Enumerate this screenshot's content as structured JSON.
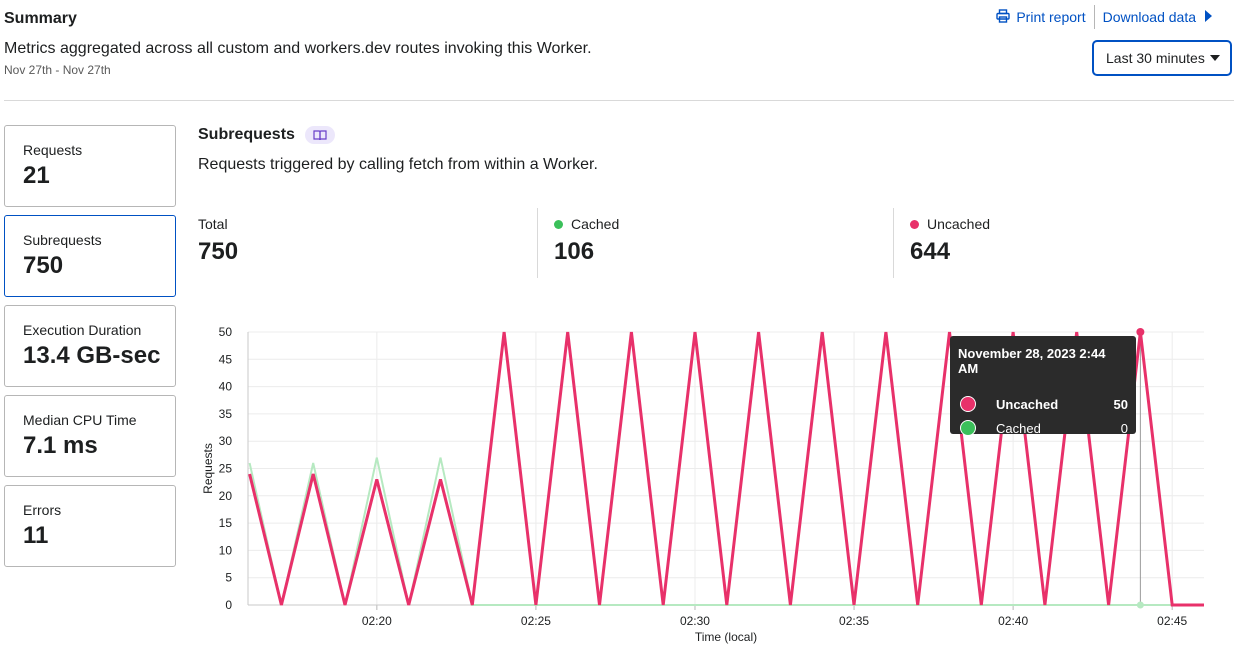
{
  "summary": {
    "title": "Summary",
    "description": "Metrics aggregated across all custom and workers.dev routes invoking this Worker.",
    "dates": "Nov 27th - Nov 27th"
  },
  "actions": {
    "print_label": "Print report",
    "download_label": "Download data"
  },
  "time_range": {
    "selected": "Last 30 minutes"
  },
  "metrics": [
    {
      "label": "Requests",
      "value": "21"
    },
    {
      "label": "Subrequests",
      "value": "750"
    },
    {
      "label": "Execution Duration",
      "value": "13.4 GB-sec"
    },
    {
      "label": "Median CPU Time",
      "value": "7.1 ms"
    },
    {
      "label": "Errors",
      "value": "11"
    }
  ],
  "panel": {
    "title": "Subrequests",
    "description": "Requests triggered by calling fetch from within a Worker."
  },
  "stats": {
    "total_label": "Total",
    "total_value": "750",
    "cached_label": "Cached",
    "cached_value": "106",
    "uncached_label": "Uncached",
    "uncached_value": "644"
  },
  "colors": {
    "uncached": "#e8316a",
    "cached": "#3bc05a",
    "cached_line": "#b6e9c1",
    "accent": "#0051c3"
  },
  "tooltip": {
    "title": "November 28, 2023 2:44 AM",
    "rows": [
      {
        "name": "Uncached",
        "value": "50"
      },
      {
        "name": "Cached",
        "value": "0"
      }
    ]
  },
  "chart_data": {
    "type": "line",
    "xlabel": "Time (local)",
    "ylabel": "Requests",
    "ylim": [
      0,
      50
    ],
    "yticks": [
      0,
      5,
      10,
      15,
      20,
      25,
      30,
      35,
      40,
      45,
      50
    ],
    "xticks": [
      "02:20",
      "02:25",
      "02:30",
      "02:35",
      "02:40",
      "02:45"
    ],
    "grid": true,
    "series": [
      {
        "name": "Uncached",
        "x": [
          "02:16",
          "02:17",
          "02:18",
          "02:19",
          "02:20",
          "02:21",
          "02:22",
          "02:23",
          "02:24",
          "02:25",
          "02:26",
          "02:27",
          "02:28",
          "02:29",
          "02:30",
          "02:31",
          "02:32",
          "02:33",
          "02:34",
          "02:35",
          "02:36",
          "02:37",
          "02:38",
          "02:39",
          "02:40",
          "02:41",
          "02:42",
          "02:43",
          "02:44",
          "02:45",
          "02:46"
        ],
        "values": [
          24,
          0,
          24,
          0,
          23,
          0,
          23,
          0,
          50,
          0,
          50,
          0,
          50,
          0,
          50,
          0,
          50,
          0,
          50,
          0,
          50,
          0,
          50,
          0,
          50,
          0,
          50,
          0,
          50,
          0,
          0
        ]
      },
      {
        "name": "Cached",
        "x": [
          "02:16",
          "02:17",
          "02:18",
          "02:19",
          "02:20",
          "02:21",
          "02:22",
          "02:23",
          "02:24",
          "02:25",
          "02:26",
          "02:27",
          "02:28",
          "02:29",
          "02:30",
          "02:31",
          "02:32",
          "02:33",
          "02:34",
          "02:35",
          "02:36",
          "02:37",
          "02:38",
          "02:39",
          "02:40",
          "02:41",
          "02:42",
          "02:43",
          "02:44",
          "02:45",
          "02:46"
        ],
        "values": [
          26,
          0,
          26,
          0,
          27,
          0,
          27,
          0,
          0,
          0,
          0,
          0,
          0,
          0,
          0,
          0,
          0,
          0,
          0,
          0,
          0,
          0,
          0,
          0,
          0,
          0,
          0,
          0,
          0,
          0,
          0
        ]
      }
    ],
    "highlight": {
      "x": "02:44"
    }
  }
}
